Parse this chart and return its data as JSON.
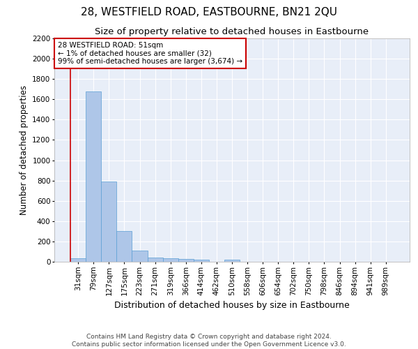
{
  "title": "28, WESTFIELD ROAD, EASTBOURNE, BN21 2QU",
  "subtitle": "Size of property relative to detached houses in Eastbourne",
  "xlabel": "Distribution of detached houses by size in Eastbourne",
  "ylabel": "Number of detached properties",
  "footer_line1": "Contains HM Land Registry data © Crown copyright and database right 2024.",
  "footer_line2": "Contains public sector information licensed under the Open Government Licence v3.0.",
  "categories": [
    "31sqm",
    "79sqm",
    "127sqm",
    "175sqm",
    "223sqm",
    "271sqm",
    "319sqm",
    "366sqm",
    "414sqm",
    "462sqm",
    "510sqm",
    "558sqm",
    "606sqm",
    "654sqm",
    "702sqm",
    "750sqm",
    "798sqm",
    "846sqm",
    "894sqm",
    "941sqm",
    "989sqm"
  ],
  "values": [
    32,
    1680,
    790,
    300,
    112,
    43,
    32,
    25,
    22,
    0,
    22,
    0,
    0,
    0,
    0,
    0,
    0,
    0,
    0,
    0,
    0
  ],
  "bar_color": "#aec6e8",
  "bar_edge_color": "#5a9fd4",
  "highlight_line_color": "#cc0000",
  "annotation_box_text": "28 WESTFIELD ROAD: 51sqm\n← 1% of detached houses are smaller (32)\n99% of semi-detached houses are larger (3,674) →",
  "ylim": [
    0,
    2200
  ],
  "yticks": [
    0,
    200,
    400,
    600,
    800,
    1000,
    1200,
    1400,
    1600,
    1800,
    2000,
    2200
  ],
  "plot_bg_color": "#e8eef8",
  "grid_color": "#ffffff",
  "title_fontsize": 11,
  "subtitle_fontsize": 9.5,
  "xlabel_fontsize": 9,
  "ylabel_fontsize": 8.5,
  "tick_fontsize": 7.5,
  "annotation_fontsize": 7.5,
  "footer_fontsize": 6.5
}
